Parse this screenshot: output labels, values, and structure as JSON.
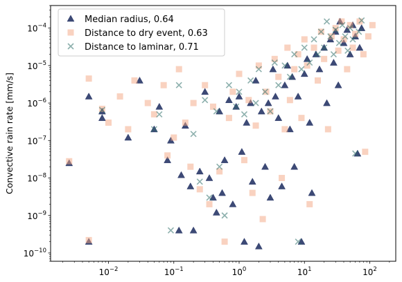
{
  "chart_data": {
    "type": "scatter",
    "title": "",
    "xlabel": "",
    "ylabel": "Convective rain rate [mm/s]",
    "xscale": "log",
    "yscale": "log",
    "xlim": [
      0.0013,
      250
    ],
    "ylim": [
      6e-11,
      0.0004
    ],
    "x_ticks": [
      {
        "value": 0.01,
        "base": "10",
        "exp": "−2"
      },
      {
        "value": 0.1,
        "base": "10",
        "exp": "−1"
      },
      {
        "value": 1,
        "base": "10",
        "exp": "0"
      },
      {
        "value": 10,
        "base": "10",
        "exp": "1"
      },
      {
        "value": 100,
        "base": "10",
        "exp": "2"
      }
    ],
    "y_ticks": [
      {
        "value": 1e-10,
        "base": "10",
        "exp": "−10"
      },
      {
        "value": 1e-09,
        "base": "10",
        "exp": "−9"
      },
      {
        "value": 1e-08,
        "base": "10",
        "exp": "−8"
      },
      {
        "value": 1e-07,
        "base": "10",
        "exp": "−7"
      },
      {
        "value": 1e-06,
        "base": "10",
        "exp": "−6"
      },
      {
        "value": 1e-05,
        "base": "10",
        "exp": "−5"
      },
      {
        "value": 0.0001,
        "base": "10",
        "exp": "−4"
      }
    ],
    "grid": false,
    "legend_position": "top-left",
    "series": [
      {
        "name": "Median radius, 0.64",
        "marker": "triangle",
        "color": "#1b2a5e",
        "opacity": 0.85,
        "points": [
          [
            0.0025,
            2.5e-08
          ],
          [
            0.005,
            2e-10
          ],
          [
            0.005,
            1.5e-06
          ],
          [
            0.008,
            6e-07
          ],
          [
            0.008,
            4e-07
          ],
          [
            0.02,
            1.2e-07
          ],
          [
            0.03,
            4e-06
          ],
          [
            0.05,
            2e-07
          ],
          [
            0.06,
            8e-07
          ],
          [
            0.08,
            3e-08
          ],
          [
            0.09,
            1e-07
          ],
          [
            0.12,
            4e-10
          ],
          [
            0.13,
            1.2e-08
          ],
          [
            0.15,
            2.5e-07
          ],
          [
            0.18,
            6e-09
          ],
          [
            0.2,
            4e-10
          ],
          [
            0.25,
            1.5e-08
          ],
          [
            0.3,
            2e-06
          ],
          [
            0.35,
            1e-08
          ],
          [
            0.4,
            3e-09
          ],
          [
            0.45,
            1.2e-09
          ],
          [
            0.5,
            6e-07
          ],
          [
            0.55,
            4e-09
          ],
          [
            0.6,
            3e-08
          ],
          [
            0.7,
            1.2e-06
          ],
          [
            0.8,
            2e-09
          ],
          [
            0.9,
            8e-07
          ],
          [
            1.0,
            1.5e-06
          ],
          [
            1.1,
            5e-08
          ],
          [
            1.2,
            2e-10
          ],
          [
            1.3,
            3e-07
          ],
          [
            1.5,
            1e-06
          ],
          [
            1.6,
            8e-09
          ],
          [
            1.8,
            4e-06
          ],
          [
            2.0,
            1.5e-10
          ],
          [
            2.2,
            6e-07
          ],
          [
            2.5,
            2e-08
          ],
          [
            2.8,
            1e-06
          ],
          [
            3.0,
            3e-09
          ],
          [
            3.3,
            8e-06
          ],
          [
            3.6,
            1.5e-06
          ],
          [
            4.0,
            4e-07
          ],
          [
            4.5,
            6e-09
          ],
          [
            5.0,
            3e-06
          ],
          [
            5.5,
            1e-05
          ],
          [
            6.0,
            2e-07
          ],
          [
            6.5,
            5e-06
          ],
          [
            7.0,
            2e-08
          ],
          [
            8.0,
            1.5e-06
          ],
          [
            9.0,
            2e-10
          ],
          [
            10,
            6e-06
          ],
          [
            11,
            1.5e-05
          ],
          [
            12,
            3e-07
          ],
          [
            13,
            4e-09
          ],
          [
            15,
            2e-05
          ],
          [
            17,
            8e-06
          ],
          [
            20,
            3e-05
          ],
          [
            22,
            1e-06
          ],
          [
            25,
            5e-05
          ],
          [
            28,
            1.2e-05
          ],
          [
            30,
            8e-05
          ],
          [
            33,
            3e-06
          ],
          [
            35,
            0.00015
          ],
          [
            40,
            4e-05
          ],
          [
            45,
            9e-05
          ],
          [
            50,
            2e-05
          ],
          [
            55,
            0.00012
          ],
          [
            60,
            6e-05
          ],
          [
            65,
            4.5e-08
          ],
          [
            70,
            3e-05
          ],
          [
            75,
            0.0001
          ]
        ]
      },
      {
        "name": "Distance to dry event, 0.63",
        "marker": "square",
        "color": "#f4a582",
        "opacity": 0.5,
        "points": [
          [
            0.0025,
            2.8e-08
          ],
          [
            0.005,
            2.2e-10
          ],
          [
            0.005,
            4.5e-06
          ],
          [
            0.008,
            7e-07
          ],
          [
            0.01,
            3e-07
          ],
          [
            0.015,
            1.5e-06
          ],
          [
            0.02,
            2e-07
          ],
          [
            0.025,
            4e-06
          ],
          [
            0.04,
            1e-06
          ],
          [
            0.05,
            5e-07
          ],
          [
            0.07,
            3e-06
          ],
          [
            0.08,
            4e-08
          ],
          [
            0.1,
            1.2e-07
          ],
          [
            0.12,
            8e-06
          ],
          [
            0.15,
            3e-07
          ],
          [
            0.18,
            2e-08
          ],
          [
            0.2,
            1e-06
          ],
          [
            0.25,
            5e-09
          ],
          [
            0.3,
            3e-06
          ],
          [
            0.35,
            2e-09
          ],
          [
            0.4,
            8e-07
          ],
          [
            0.5,
            1.5e-08
          ],
          [
            0.6,
            2e-10
          ],
          [
            0.7,
            4e-07
          ],
          [
            0.8,
            2e-06
          ],
          [
            1.0,
            6e-06
          ],
          [
            1.2,
            3e-08
          ],
          [
            1.4,
            1.2e-06
          ],
          [
            1.6,
            4e-09
          ],
          [
            1.8,
            2.5e-07
          ],
          [
            2.0,
            1e-05
          ],
          [
            2.3,
            8e-10
          ],
          [
            2.6,
            2e-06
          ],
          [
            3.0,
            6e-07
          ],
          [
            3.5,
            1.5e-05
          ],
          [
            4.0,
            5e-06
          ],
          [
            4.5,
            1e-08
          ],
          [
            5.0,
            2e-07
          ],
          [
            5.5,
            3e-05
          ],
          [
            6.0,
            1.2e-06
          ],
          [
            7.0,
            8e-06
          ],
          [
            8.0,
            2e-05
          ],
          [
            9.0,
            4e-07
          ],
          [
            10,
            5e-05
          ],
          [
            11,
            1e-05
          ],
          [
            12,
            2e-09
          ],
          [
            14,
            3e-05
          ],
          [
            16,
            4e-06
          ],
          [
            18,
            8e-05
          ],
          [
            20,
            1.5e-05
          ],
          [
            23,
            2e-07
          ],
          [
            26,
            6e-05
          ],
          [
            30,
            0.0001
          ],
          [
            33,
            2.5e-05
          ],
          [
            37,
            0.00015
          ],
          [
            40,
            5e-05
          ],
          [
            45,
            8e-06
          ],
          [
            50,
            0.00012
          ],
          [
            55,
            3e-05
          ],
          [
            60,
            7e-05
          ],
          [
            70,
            0.00015
          ],
          [
            80,
            2e-05
          ],
          [
            85,
            5e-08
          ],
          [
            95,
            6e-05
          ],
          [
            110,
            0.00012
          ]
        ]
      },
      {
        "name": "Distance to laminar, 0.71",
        "marker": "x",
        "color": "#2f6f6a",
        "opacity": 0.55,
        "points": [
          [
            0.008,
            6.5e-07
          ],
          [
            0.05,
            2e-07
          ],
          [
            0.06,
            5e-07
          ],
          [
            0.09,
            4e-10
          ],
          [
            0.12,
            3e-06
          ],
          [
            0.2,
            1.5e-07
          ],
          [
            0.25,
            8e-09
          ],
          [
            0.3,
            1.2e-06
          ],
          [
            0.35,
            3e-09
          ],
          [
            0.45,
            6e-07
          ],
          [
            0.5,
            2e-08
          ],
          [
            0.6,
            1e-09
          ],
          [
            0.7,
            3e-06
          ],
          [
            0.9,
            8e-07
          ],
          [
            1.0,
            2e-06
          ],
          [
            1.2,
            5e-07
          ],
          [
            1.5,
            4e-06
          ],
          [
            1.8,
            1e-06
          ],
          [
            2.0,
            8e-06
          ],
          [
            2.5,
            2e-06
          ],
          [
            3.0,
            6e-07
          ],
          [
            3.5,
            1.2e-05
          ],
          [
            4.0,
            3e-06
          ],
          [
            5.0,
            1e-05
          ],
          [
            6.0,
            5e-06
          ],
          [
            7.0,
            2e-05
          ],
          [
            8.0,
            2e-10
          ],
          [
            9.0,
            8e-06
          ],
          [
            10,
            3e-05
          ],
          [
            12,
            1.2e-05
          ],
          [
            14,
            5e-05
          ],
          [
            16,
            2e-05
          ],
          [
            18,
            8e-05
          ],
          [
            20,
            3e-05
          ],
          [
            22,
            0.00015
          ],
          [
            25,
            6e-05
          ],
          [
            28,
            2e-05
          ],
          [
            30,
            9e-05
          ],
          [
            34,
            4e-05
          ],
          [
            38,
            0.00012
          ],
          [
            42,
            6e-05
          ],
          [
            46,
            2.5e-05
          ],
          [
            50,
            0.0001
          ],
          [
            55,
            5e-05
          ],
          [
            60,
            4.5e-08
          ],
          [
            68,
            8e-05
          ],
          [
            75,
            0.00016
          ]
        ]
      }
    ]
  }
}
